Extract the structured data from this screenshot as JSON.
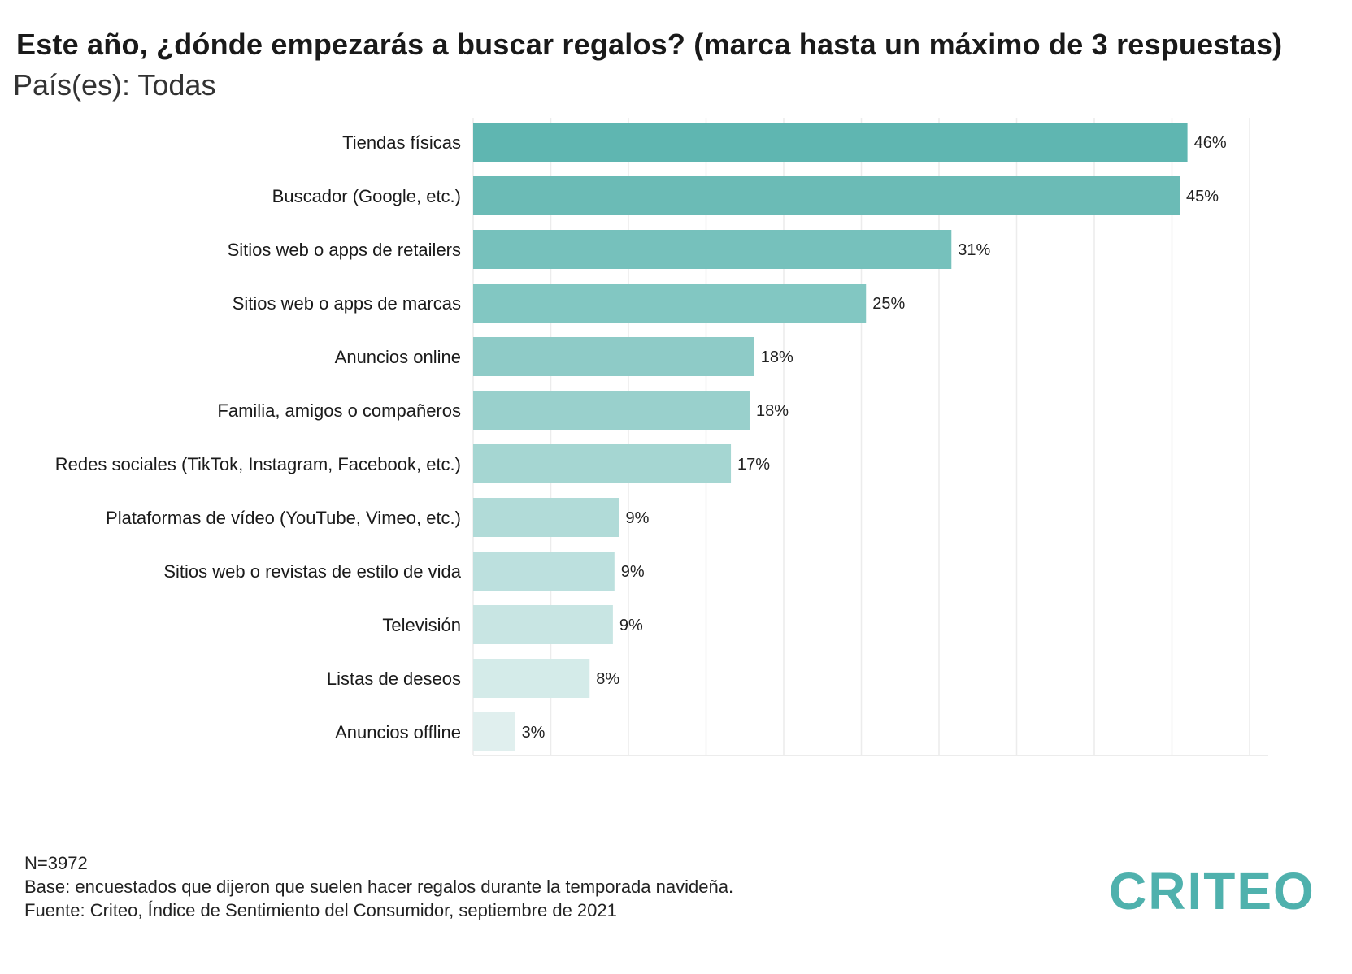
{
  "header": {
    "title": "Este año, ¿dónde empezarás a buscar regalos? (marca hasta un máximo de 3 respuestas)",
    "subtitle": "País(es): Todas"
  },
  "chart_data": {
    "type": "bar",
    "orientation": "horizontal",
    "categories": [
      "Tiendas físicas",
      "Buscador (Google, etc.)",
      "Sitios web o apps de retailers",
      "Sitios web o apps de marcas",
      "Anuncios online",
      "Familia, amigos o compañeros",
      "Redes sociales (TikTok, Instagram, Facebook, etc.)",
      "Plataformas de vídeo (YouTube, Vimeo, etc.)",
      "Sitios web o revistas de estilo de vida",
      "Televisión",
      "Listas de deseos",
      "Anuncios offline"
    ],
    "values": [
      46,
      45,
      31,
      25,
      18,
      18,
      17,
      9,
      9,
      9,
      8,
      3
    ],
    "value_precise": [
      46.0,
      45.5,
      30.8,
      25.3,
      18.1,
      17.8,
      16.6,
      9.4,
      9.1,
      9.0,
      7.5,
      2.7
    ],
    "data_labels": [
      "46%",
      "45%",
      "31%",
      "25%",
      "18%",
      "18%",
      "17%",
      "9%",
      "9%",
      "9%",
      "8%",
      "3%"
    ],
    "xlim": [
      0,
      51
    ],
    "grid": "vertical",
    "bar_colors": [
      "#5fb6b1",
      "#6bbbb6",
      "#76c1bc",
      "#82c7c2",
      "#8ecbc7",
      "#99d0cc",
      "#a5d6d2",
      "#b1dbd8",
      "#bce0de",
      "#c8e5e3",
      "#d4ebe9",
      "#e0efee"
    ]
  },
  "footer": {
    "n": "N=3972",
    "base": "Base: encuestados que dijeron que suelen hacer regalos durante la temporada navideña.",
    "source": "Fuente: Criteo, Índice de Sentimiento del Consumidor, septiembre de 2021"
  },
  "logo": {
    "text": "CRITEO",
    "color": "#4fb1ad"
  }
}
